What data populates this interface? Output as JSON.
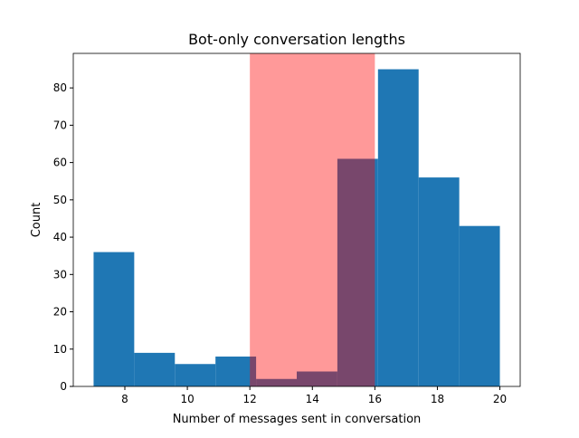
{
  "chart_data": {
    "type": "histogram",
    "title": "Bot-only conversation lengths",
    "x_label": "Number of messages sent in conversation",
    "y_label": "Count",
    "bins": [
      7,
      8.3,
      9.6,
      10.9,
      12.2,
      13.5,
      14.8,
      16.1,
      17.4,
      18.7,
      20
    ],
    "values": [
      36,
      9,
      6,
      8,
      2,
      4,
      61,
      85,
      56,
      43
    ],
    "color": "#1f77b4",
    "span": [
      12,
      16
    ],
    "span_color": "#ff0000",
    "span_opacity": 0.4,
    "xlim": [
      6.35,
      20.65
    ],
    "ylim": [
      0,
      89.25
    ],
    "xticks": [
      8,
      10,
      12,
      14,
      16,
      18,
      20
    ],
    "yticks": [
      0,
      10,
      20,
      30,
      40,
      50,
      60,
      70,
      80
    ]
  }
}
